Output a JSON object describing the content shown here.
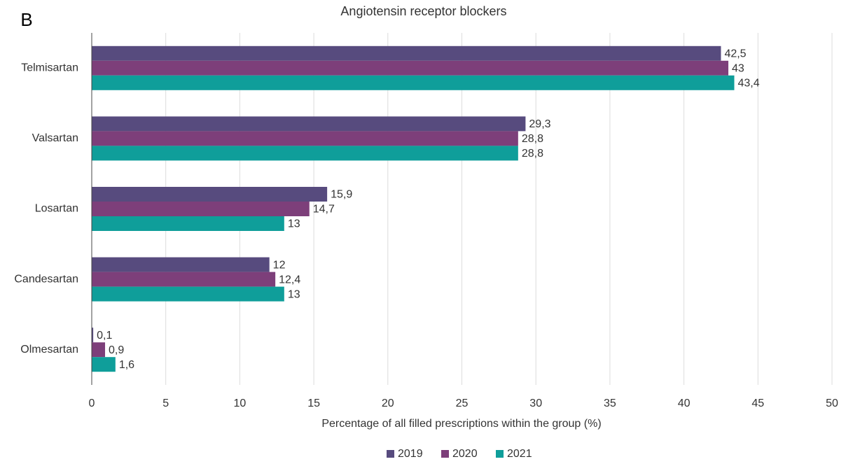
{
  "chart_data": {
    "type": "barh",
    "panel_label": "B",
    "title": "Angiotensin receptor blockers",
    "xlabel": "Percentage of all filled prescriptions within the group (%)",
    "categories": [
      "Telmisartan",
      "Valsartan",
      "Losartan",
      "Candesartan",
      "Olmesartan"
    ],
    "series": [
      {
        "name": "2019",
        "color": "#574b7e",
        "values": [
          42.5,
          29.3,
          15.9,
          12,
          0.1
        ],
        "value_labels": [
          "42,5",
          "29,3",
          "15,9",
          "12",
          "0,1"
        ]
      },
      {
        "name": "2020",
        "color": "#7d3f7a",
        "values": [
          43,
          28.8,
          14.7,
          12.4,
          0.9
        ],
        "value_labels": [
          "43",
          "28,8",
          "14,7",
          "12,4",
          "0,9"
        ]
      },
      {
        "name": "2021",
        "color": "#0f9e9a",
        "values": [
          43.4,
          28.8,
          13,
          13,
          1.6
        ],
        "value_labels": [
          "43,4",
          "28,8",
          "13",
          "13",
          "1,6"
        ]
      }
    ],
    "xlim": [
      0,
      50
    ],
    "xticks": [
      0,
      5,
      10,
      15,
      20,
      25,
      30,
      35,
      40,
      45,
      50
    ],
    "grid": true,
    "legend": "bottom"
  }
}
